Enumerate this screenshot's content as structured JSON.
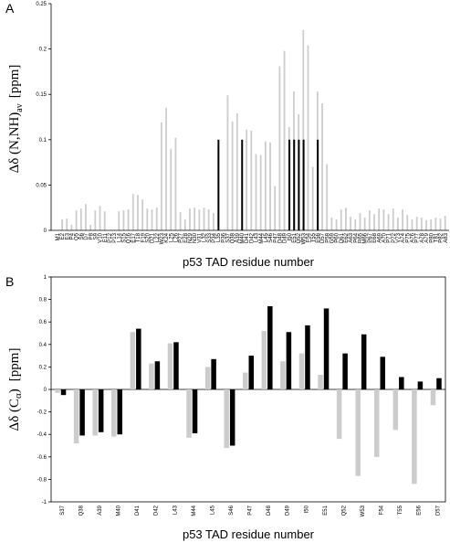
{
  "chart_data": [
    {
      "panel_label": "A",
      "type": "bar",
      "xlabel": "p53 TAD residue number",
      "ylabel": "Δδ (N,NH)",
      "ylabel_sub": "av",
      "ylabel_unit": "[ppm]",
      "ylim": [
        0,
        0.25
      ],
      "yticks": [
        "0",
        "0.05",
        "0.1",
        "0.15",
        "0.2",
        "0.25"
      ],
      "grid": false,
      "categories": [
        "M1",
        "E2",
        "E3",
        "P4",
        "Q5",
        "S6",
        "D7",
        "P8",
        "S9",
        "V10",
        "E11",
        "P12",
        "P13",
        "L14",
        "S15",
        "Q16",
        "E17",
        "T18",
        "F19",
        "S20",
        "D21",
        "L22",
        "W23",
        "K24",
        "L25",
        "L26",
        "P27",
        "E28",
        "N29",
        "N30",
        "V31",
        "L32",
        "S33",
        "P34",
        "L35",
        "P36",
        "S37",
        "Q38",
        "A39",
        "M40",
        "D41",
        "D42",
        "L43",
        "M44",
        "L45",
        "S46",
        "P47",
        "D48",
        "D49",
        "I50",
        "E51",
        "Q52",
        "W53",
        "F54",
        "T55",
        "E56",
        "D57",
        "P58",
        "G59",
        "P60",
        "D61",
        "E62",
        "A63",
        "P64",
        "R65",
        "M66",
        "P67",
        "E68",
        "A69",
        "A70",
        "P71",
        "P72",
        "V73",
        "A74",
        "P75",
        "A76",
        "P77",
        "A78",
        "A79",
        "P80",
        "T81",
        "P82",
        "A83"
      ],
      "tick_labels": [
        "M1",
        "E2",
        "E3",
        "P4",
        "Q5",
        "S6",
        "D7",
        "P8",
        "S9",
        "V10",
        "E11",
        "P12",
        "P13",
        "L14",
        "S15",
        "Q16",
        "E17",
        "T18",
        "F19",
        "S20",
        "D21",
        "L22",
        "W23",
        "K24",
        "L25",
        "L26",
        "P27",
        "E28",
        "N29",
        "N30",
        "V31",
        "L32",
        "S33",
        "P34",
        "L35",
        "P36",
        "S37",
        "Q38",
        "A39",
        "M40",
        "D41",
        "D42",
        "L43",
        "M44",
        "L45",
        "S46",
        "P47",
        "D48",
        "D49",
        "I50",
        "E51",
        "Q52",
        "W53",
        "F54",
        "T55",
        "E56",
        "D57",
        "P58",
        "G59",
        "P60",
        "D61",
        "E62",
        "A63",
        "P64",
        "R65",
        "M66",
        "P67",
        "E68",
        "A69",
        "A70",
        "P71",
        "P72",
        "V73",
        "A74",
        "P75",
        "A76",
        "P77",
        "A78",
        "A79",
        "P80",
        "T81",
        "P82",
        "A83"
      ],
      "values": [
        0,
        0.012,
        0.013,
        0.006,
        0.022,
        0.024,
        0.029,
        0.006,
        0.022,
        0.027,
        0.021,
        0,
        0,
        0.021,
        0.022,
        0.023,
        0.04,
        0.039,
        0.034,
        0.024,
        0.023,
        0.025,
        0.119,
        0.135,
        0.09,
        0.102,
        0.02,
        0.012,
        0.024,
        0.025,
        0.023,
        0.025,
        0.023,
        0.019,
        0,
        0,
        0.149,
        0.12,
        0.129,
        0,
        0.111,
        0.11,
        0.084,
        0.083,
        0.098,
        0.097,
        0.049,
        0.181,
        0.198,
        0.114,
        0.153,
        0.128,
        0.221,
        0.204,
        0.07,
        0.153,
        0.14,
        0.073,
        0.014,
        0.012,
        0.023,
        0.025,
        0.015,
        0.012,
        0.019,
        0.014,
        0.022,
        0.018,
        0.024,
        0.023,
        0.018,
        0.024,
        0.014,
        0.023,
        0.017,
        0.012,
        0.015,
        0.014,
        0.011,
        0.012,
        0.014,
        0.013,
        0.016
      ],
      "highlight_values": [
        0,
        0,
        0,
        0,
        0,
        0,
        0,
        0,
        0,
        0,
        0,
        0,
        0,
        0,
        0,
        0,
        0,
        0,
        0,
        0,
        0,
        0,
        0,
        0,
        0,
        0,
        0,
        0,
        0,
        0,
        0,
        0,
        0,
        0,
        0.1,
        0,
        0,
        0,
        0,
        0.1,
        0,
        0,
        0,
        0,
        0,
        0,
        0,
        0,
        0,
        0.1,
        0.1,
        0.1,
        0.1,
        0,
        0,
        0.1,
        0,
        0,
        0,
        0,
        0,
        0,
        0,
        0,
        0,
        0,
        0,
        0,
        0,
        0,
        0,
        0,
        0,
        0,
        0,
        0,
        0,
        0,
        0,
        0,
        0,
        0,
        0
      ],
      "colors": {
        "main": "#cccccc",
        "highlight": "#000000"
      }
    },
    {
      "panel_label": "B",
      "type": "bar",
      "xlabel": "p53 TAD residue number",
      "ylabel": "Δδ (C",
      "ylabel_alpha": "α",
      "ylabel_close": ")",
      "ylabel_unit": "[ppm]",
      "ylim": [
        -1,
        1
      ],
      "yticks": [
        "-1",
        "-0.8",
        "-0.6",
        "-0.4",
        "-0.2",
        "0",
        "0.2",
        "0.4",
        "0.6",
        "0.8",
        "1"
      ],
      "grid": false,
      "categories": [
        "S37",
        "Q38",
        "A39",
        "M40",
        "D41",
        "D42",
        "L43",
        "M44",
        "L45",
        "S46",
        "P47",
        "D48",
        "D49",
        "I50",
        "E51",
        "Q52",
        "W53",
        "F54",
        "T55",
        "E56",
        "D57"
      ],
      "series": [
        {
          "values": [
            -0.03,
            -0.48,
            -0.41,
            -0.42,
            0.51,
            0.23,
            0.41,
            -0.43,
            0.2,
            -0.52,
            0.15,
            0.52,
            0.25,
            0.32,
            0.13,
            -0.44,
            -0.77,
            -0.6,
            -0.36,
            -0.84,
            -0.14
          ],
          "color": "#cccccc"
        },
        {
          "values": [
            -0.05,
            -0.41,
            -0.38,
            -0.4,
            0.54,
            0.25,
            0.42,
            -0.39,
            0.27,
            -0.5,
            0.3,
            0.74,
            0.51,
            0.57,
            0.72,
            0.32,
            0.49,
            0.29,
            0.11,
            0.07,
            0.1
          ],
          "color": "#000000"
        }
      ]
    }
  ]
}
